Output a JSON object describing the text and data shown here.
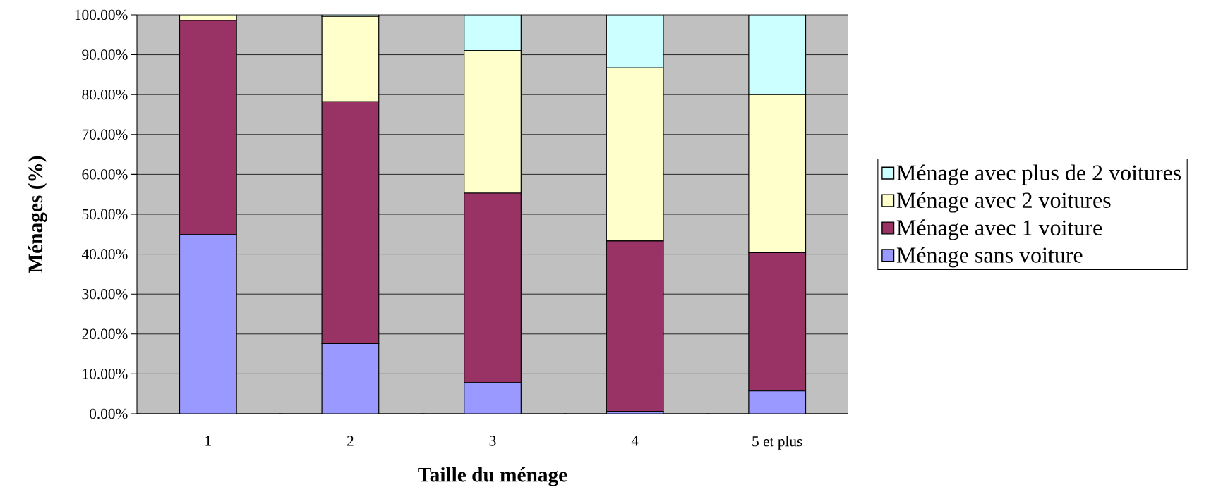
{
  "chart_data": {
    "type": "bar",
    "stacked": true,
    "xlabel": "Taille du ménage",
    "ylabel": "Ménages (%)",
    "categories": [
      "1",
      "2",
      "3",
      "4",
      "5 et plus"
    ],
    "series": [
      {
        "name": "Ménage sans voiture",
        "color": "#9999ff",
        "values": [
          44.9,
          17.6,
          7.8,
          0.6,
          5.7
        ]
      },
      {
        "name": "Ménage avec 1 voiture",
        "color": "#993366",
        "values": [
          53.7,
          60.6,
          47.5,
          42.7,
          34.7
        ]
      },
      {
        "name": "Ménage avec 2 voitures",
        "color": "#ffffcc",
        "values": [
          1.4,
          21.4,
          35.7,
          43.4,
          39.6
        ]
      },
      {
        "name": "Ménage avec plus de 2 voitures",
        "color": "#ccffff",
        "values": [
          0,
          0.4,
          9.0,
          13.3,
          20.0
        ]
      }
    ],
    "ylim": [
      0,
      100
    ],
    "yticks": [
      {
        "value": 0,
        "label": "0.00%"
      },
      {
        "value": 10,
        "label": "10.00%"
      },
      {
        "value": 20,
        "label": "20.00%"
      },
      {
        "value": 30,
        "label": "30.00%"
      },
      {
        "value": 40,
        "label": "40.00%"
      },
      {
        "value": 50,
        "label": "50.00%"
      },
      {
        "value": 60,
        "label": "60.00%"
      },
      {
        "value": 70,
        "label": "70.00%"
      },
      {
        "value": 80,
        "label": "80.00%"
      },
      {
        "value": 90,
        "label": "90.00%"
      },
      {
        "value": 100,
        "label": "100.00%"
      }
    ],
    "grid": "y",
    "legend": "right"
  }
}
